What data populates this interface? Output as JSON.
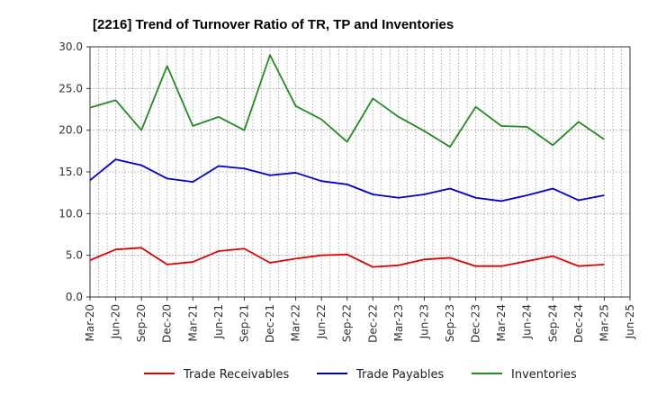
{
  "chart_data": {
    "type": "line",
    "title": "[2216]  Trend of Turnover Ratio of TR, TP and Inventories",
    "xlabel": "",
    "ylabel": "",
    "ylim": [
      0,
      30
    ],
    "yticks": [
      "0.0",
      "5.0",
      "10.0",
      "15.0",
      "20.0",
      "25.0",
      "30.0"
    ],
    "x_tick_labels": [
      "Mar-20",
      "Jun-20",
      "Sep-20",
      "Dec-20",
      "Mar-21",
      "Jun-21",
      "Sep-21",
      "Dec-21",
      "Mar-22",
      "Jun-22",
      "Sep-22",
      "Dec-22",
      "Mar-23",
      "Jun-23",
      "Sep-23",
      "Dec-23",
      "Mar-24",
      "Jun-24",
      "Sep-24",
      "Dec-24",
      "Mar-25",
      "Jun-25"
    ],
    "x": [
      "Mar-20",
      "Jun-20",
      "Sep-20",
      "Dec-20",
      "Mar-21",
      "Jun-21",
      "Sep-21",
      "Dec-21",
      "Mar-22",
      "Jun-22",
      "Sep-22",
      "Dec-22",
      "Mar-23",
      "Jun-23",
      "Sep-23",
      "Dec-23",
      "Mar-24",
      "Jun-24",
      "Sep-24",
      "Dec-24",
      "Mar-25"
    ],
    "grid": true,
    "legend_position": "bottom",
    "series": [
      {
        "name": "Trade Receivables",
        "color": "#e00000",
        "values": [
          4.4,
          5.7,
          5.9,
          3.9,
          4.2,
          5.5,
          5.8,
          4.1,
          4.6,
          5.0,
          5.1,
          3.6,
          3.8,
          4.5,
          4.7,
          3.7,
          3.7,
          4.3,
          4.9,
          3.7,
          3.9
        ]
      },
      {
        "name": "Trade Payables",
        "color": "#0000cc",
        "values": [
          14.0,
          16.5,
          15.8,
          14.2,
          13.8,
          15.7,
          15.4,
          14.6,
          14.9,
          13.9,
          13.5,
          12.3,
          11.9,
          12.3,
          13.0,
          11.9,
          11.5,
          12.2,
          13.0,
          11.6,
          12.2
        ]
      },
      {
        "name": "Inventories",
        "color": "#228b22",
        "values": [
          22.7,
          23.6,
          20.0,
          27.7,
          20.5,
          21.6,
          20.0,
          29.0,
          22.9,
          21.3,
          18.6,
          23.8,
          21.6,
          19.9,
          18.0,
          22.8,
          20.5,
          20.4,
          18.2,
          21.0,
          18.9
        ]
      }
    ]
  }
}
